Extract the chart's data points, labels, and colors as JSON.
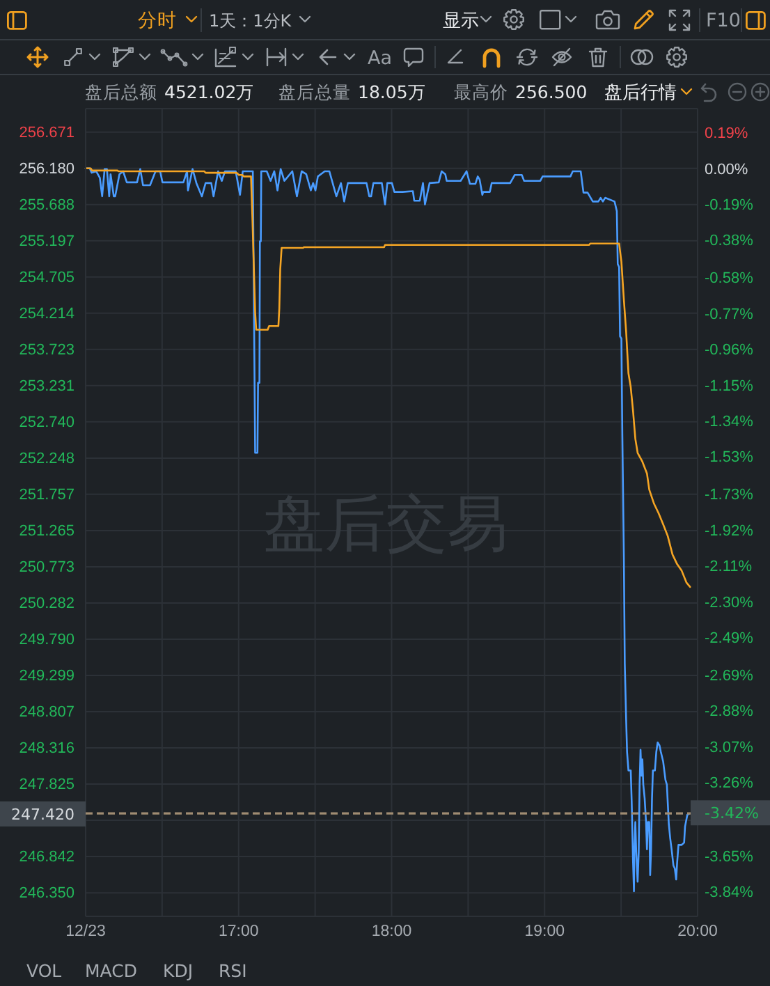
{
  "chart_data": {
    "type": "line",
    "annotations": [
      "分时",
      "1天：1分K",
      "显示",
      "F10",
      "Aa",
      "盘后总额 4521.02万",
      "盘后总量 18.05万",
      "最高价 256.500",
      "盘后行情",
      "盘后交易",
      "VOL",
      "MACD",
      "KDJ",
      "RSI"
    ],
    "xlim": [
      16,
      20
    ],
    "xticks": [
      {
        "value": 16,
        "label": "12/23"
      },
      {
        "value": 16.5,
        "label": null
      },
      {
        "value": 17,
        "label": "17:00"
      },
      {
        "value": 17.5,
        "label": null
      },
      {
        "value": 18,
        "label": "18:00"
      },
      {
        "value": 18.5,
        "label": null
      },
      {
        "value": 19,
        "label": "19:00"
      },
      {
        "value": 19.5,
        "label": null
      },
      {
        "value": 20,
        "label": "20:00"
      }
    ],
    "ylim": [
      246.03,
      256.99
    ],
    "yticks": [
      256.671,
      {
        "value": 256.18,
        "label": "256.180"
      },
      255.688,
      255.197,
      254.705,
      254.214,
      253.723,
      253.231,
      {
        "value": 252.74,
        "label": "252.740"
      },
      252.248,
      251.757,
      251.265,
      250.773,
      250.282,
      {
        "value": 249.79,
        "label": "249.790"
      },
      249.299,
      248.807,
      248.316,
      247.825,
      {
        "value": 247.333,
        "label": null
      },
      246.842,
      {
        "value": 246.35,
        "label": "246.350"
      }
    ],
    "y2lim": [
      -3.97,
      0.32
    ],
    "y2ticks": [
      {
        "value": 0.19,
        "label": "0.19%"
      },
      {
        "value": 0,
        "label": "0.00%"
      },
      {
        "value": -0.19,
        "label": "-0.19%"
      },
      {
        "value": -0.38,
        "label": "-0.38%"
      },
      {
        "value": -0.58,
        "label": "-0.58%"
      },
      {
        "value": -0.77,
        "label": "-0.77%"
      },
      {
        "value": -0.96,
        "label": "-0.96%"
      },
      {
        "value": -1.15,
        "label": "-1.15%"
      },
      {
        "value": -1.34,
        "label": "-1.34%"
      },
      {
        "value": -1.53,
        "label": "-1.53%"
      },
      {
        "value": -1.73,
        "label": "-1.73%"
      },
      {
        "value": -1.92,
        "label": "-1.92%"
      },
      {
        "value": -2.11,
        "label": "-2.11%"
      },
      {
        "value": -2.3,
        "label": "-2.30%"
      },
      {
        "value": -2.49,
        "label": "-2.49%"
      },
      {
        "value": -2.69,
        "label": "-2.69%"
      },
      {
        "value": -2.88,
        "label": "-2.88%"
      },
      {
        "value": -3.07,
        "label": "-3.07%"
      },
      {
        "value": -3.26,
        "label": "-3.26%"
      },
      {
        "value": -3.65,
        "label": "-3.65%"
      },
      {
        "value": -3.84,
        "label": "-3.84%"
      }
    ],
    "grid": true,
    "ref_lines": [
      {
        "axis": "y",
        "value": 247.42,
        "label": "247.420",
        "color": "#a08c72",
        "line_style": "dashed"
      },
      {
        "axis": "y2",
        "value": -3.42,
        "label": "-3.42%",
        "color": "#a08c72",
        "line_style": "dashed"
      }
    ],
    "series": [
      {
        "color": "#4a9cff",
        "x": [
          16.0,
          16.027,
          16.039,
          16.069,
          16.093,
          16.108,
          16.124,
          16.139,
          16.154,
          16.163,
          16.184,
          16.193,
          16.221,
          16.245,
          16.269,
          16.336,
          16.357,
          16.375,
          16.421,
          16.457,
          16.487,
          16.502,
          16.639,
          16.663,
          16.669,
          16.699,
          16.724,
          16.76,
          16.784,
          16.821,
          16.836,
          16.866,
          16.89,
          16.911,
          16.981,
          17.009,
          17.027,
          17.093,
          17.108,
          17.123,
          17.127,
          17.136,
          17.139,
          17.145,
          17.148,
          17.184,
          17.209,
          17.233,
          17.254,
          17.275,
          17.299,
          17.351,
          17.381,
          17.412,
          17.442,
          17.472,
          17.487,
          17.502,
          17.518,
          17.563,
          17.593,
          17.639,
          17.669,
          17.69,
          17.714,
          17.836,
          17.854,
          17.866,
          17.881,
          17.936,
          17.957,
          17.972,
          18.002,
          18.018,
          18.072,
          18.139,
          18.148,
          18.184,
          18.205,
          18.218,
          18.248,
          18.308,
          18.327,
          18.351,
          18.36,
          18.451,
          18.49,
          18.512,
          18.548,
          18.563,
          18.575,
          18.593,
          18.599,
          18.642,
          18.654,
          18.775,
          18.805,
          18.851,
          18.866,
          18.972,
          18.987,
          19.078,
          19.169,
          19.184,
          19.236,
          19.254,
          19.281,
          19.315,
          19.351,
          19.366,
          19.381,
          19.396,
          19.457,
          19.472,
          19.478,
          19.487,
          19.493,
          19.502,
          19.508,
          19.518,
          19.524,
          19.533,
          19.539,
          19.548,
          19.563,
          19.569,
          19.578,
          19.584,
          19.587,
          19.593,
          19.599,
          19.608,
          19.615,
          19.621,
          19.627,
          19.633,
          19.639,
          19.645,
          19.654,
          19.663,
          19.669,
          19.675,
          19.684,
          19.69,
          19.696,
          19.702,
          19.708,
          19.721,
          19.73,
          19.739,
          19.751,
          19.76,
          19.775,
          19.79,
          19.799,
          19.812,
          19.821,
          19.83,
          19.842,
          19.851,
          19.86,
          19.866,
          19.875,
          19.896,
          19.912,
          19.918,
          19.933,
          19.945
        ],
        "values": [
          256.18,
          256.18,
          256.12,
          256.14,
          256.05,
          255.8,
          256.17,
          256.17,
          255.8,
          256.1,
          255.8,
          255.8,
          256.1,
          256.14,
          255.99,
          255.99,
          256.17,
          255.95,
          255.95,
          256.14,
          256.14,
          255.99,
          255.99,
          256.14,
          255.88,
          256.17,
          255.98,
          255.8,
          255.98,
          255.98,
          255.8,
          256.14,
          256.01,
          256.14,
          256.14,
          255.82,
          256.14,
          256.14,
          252.32,
          252.32,
          253.27,
          253.27,
          255.19,
          255.19,
          256.14,
          256.14,
          256.01,
          256.14,
          255.88,
          256.17,
          256.01,
          256.14,
          255.8,
          256.14,
          256.1,
          255.88,
          255.98,
          255.88,
          256.07,
          256.14,
          256.14,
          255.8,
          255.98,
          255.73,
          255.98,
          255.98,
          255.8,
          255.8,
          255.98,
          255.98,
          255.69,
          255.98,
          255.98,
          255.86,
          255.86,
          255.87,
          255.74,
          255.74,
          255.98,
          255.69,
          255.98,
          255.99,
          256.14,
          256.1,
          256.01,
          256.01,
          256.14,
          255.97,
          255.97,
          256.07,
          256.03,
          255.82,
          255.86,
          255.86,
          255.98,
          255.98,
          256.09,
          256.09,
          256.01,
          256.01,
          256.07,
          256.07,
          256.07,
          256.14,
          256.14,
          255.85,
          255.85,
          255.73,
          255.73,
          255.78,
          255.73,
          255.78,
          255.73,
          255.6,
          254.88,
          254.84,
          253.9,
          253.87,
          252.58,
          250.91,
          249.46,
          248.7,
          248.26,
          248.01,
          248.01,
          247.6,
          246.78,
          246.37,
          246.94,
          247.31,
          246.9,
          246.5,
          246.9,
          247.82,
          248.29,
          247.94,
          248.16,
          247.82,
          247.63,
          247.31,
          246.94,
          247.31,
          247.31,
          246.59,
          246.94,
          247.63,
          248.01,
          248.01,
          248.26,
          248.39,
          248.35,
          248.26,
          248.13,
          247.88,
          247.82,
          247.28,
          247.09,
          246.94,
          246.72,
          246.68,
          246.53,
          246.75,
          247.0,
          247.0,
          247.03,
          247.25,
          247.41,
          247.42
        ]
      },
      {
        "color": "#f5a524",
        "x": [
          16.0,
          16.033,
          16.042,
          16.208,
          16.215,
          16.775,
          16.784,
          16.987,
          17.002,
          17.024,
          17.033,
          17.081,
          17.09,
          17.102,
          17.108,
          17.115,
          17.19,
          17.199,
          17.26,
          17.266,
          17.272,
          17.281,
          17.421,
          17.427,
          17.951,
          17.957,
          19.29,
          19.299,
          19.487,
          19.502,
          19.518,
          19.533,
          19.548,
          19.563,
          19.578,
          19.593,
          19.608,
          19.639,
          19.669,
          19.684,
          19.715,
          19.745,
          19.775,
          19.805,
          19.836,
          19.866,
          19.896,
          19.927,
          19.951
        ],
        "values": [
          256.18,
          256.18,
          256.15,
          256.15,
          256.14,
          256.14,
          256.12,
          256.12,
          256.09,
          256.09,
          256.07,
          256.07,
          255.51,
          254.66,
          254.23,
          253.99,
          253.99,
          254.04,
          254.04,
          254.28,
          254.81,
          255.1,
          255.1,
          255.11,
          255.11,
          255.14,
          255.14,
          255.16,
          255.16,
          254.91,
          254.4,
          253.96,
          253.4,
          253.21,
          252.89,
          252.51,
          252.32,
          252.2,
          252.04,
          251.82,
          251.63,
          251.5,
          251.35,
          251.19,
          250.94,
          250.81,
          250.72,
          250.56,
          250.5
        ]
      }
    ]
  }
}
